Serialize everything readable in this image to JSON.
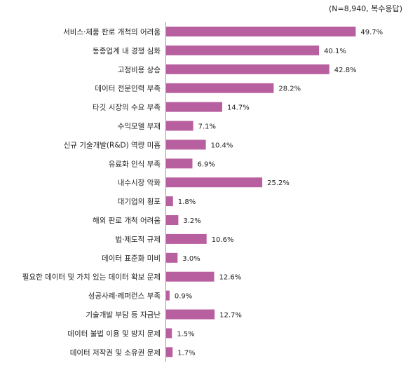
{
  "note": "(N=8,940, 복수응답)",
  "chart_data": {
    "type": "bar",
    "orientation": "horizontal",
    "title": "",
    "xlabel": "",
    "ylabel": "",
    "unit": "%",
    "xlim": [
      0,
      50
    ],
    "grid": false,
    "bar_color": "#b8609f",
    "categories": [
      "서비스·제품 판로 개척의 어려움",
      "동종업계 내 경쟁 심화",
      "고정비용 상승",
      "데이터 전문인력 부족",
      "타깃 시장의 수요 부족",
      "수익모델 부재",
      "신규 기술개발(R&D) 역량 미흡",
      "유료화 인식 부족",
      "내수시장 악화",
      "대기업의 횡포",
      "해외 판로 개척 어려움",
      "법·제도적 규제",
      "데이터 표준화 미비",
      "필요한 데이터 및 가치 있는 데이터 확보 문제",
      "성공사례·레퍼런스 부족",
      "기술개발 부담 등 자금난",
      "데이터 불법 이용 및 방지 문제",
      "데이터 저작권 및 소유권 문제"
    ],
    "values": [
      49.7,
      40.1,
      42.8,
      28.2,
      14.7,
      7.1,
      10.4,
      6.9,
      25.2,
      1.8,
      3.2,
      10.6,
      3.0,
      12.6,
      0.9,
      12.7,
      1.5,
      1.7
    ],
    "value_labels": [
      "49.7%",
      "40.1%",
      "42.8%",
      "28.2%",
      "14.7%",
      "7.1%",
      "10.4%",
      "6.9%",
      "25.2%",
      "1.8%",
      "3.2%",
      "10.6%",
      "3.0%",
      "12.6%",
      "0.9%",
      "12.7%",
      "1.5%",
      "1.7%"
    ]
  }
}
